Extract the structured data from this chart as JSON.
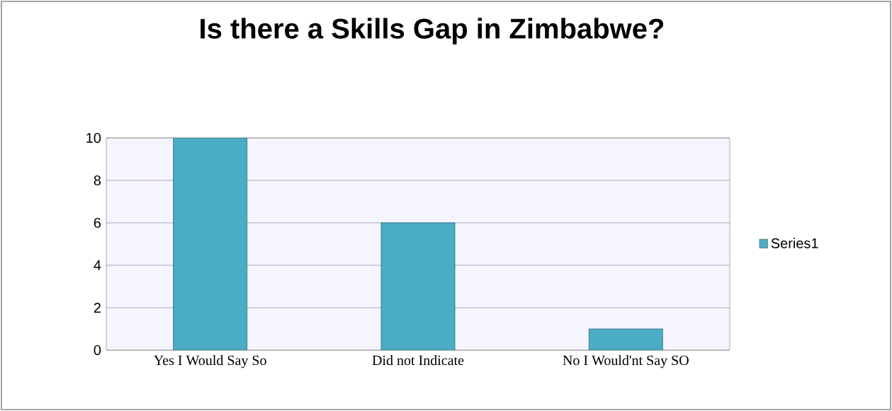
{
  "chart_data": {
    "type": "bar",
    "title": "Is there a Skills Gap in Zimbabwe?",
    "categories": [
      "Yes I Would Say So",
      "Did not Indicate",
      "No I Would'nt Say SO"
    ],
    "series": [
      {
        "name": "Series1",
        "color": "#4bacc6",
        "values": [
          10,
          6,
          1
        ]
      }
    ],
    "ylim": [
      0,
      10
    ],
    "yticks": [
      0,
      2,
      4,
      6,
      8,
      10
    ],
    "grid": "y",
    "legend": "right"
  }
}
